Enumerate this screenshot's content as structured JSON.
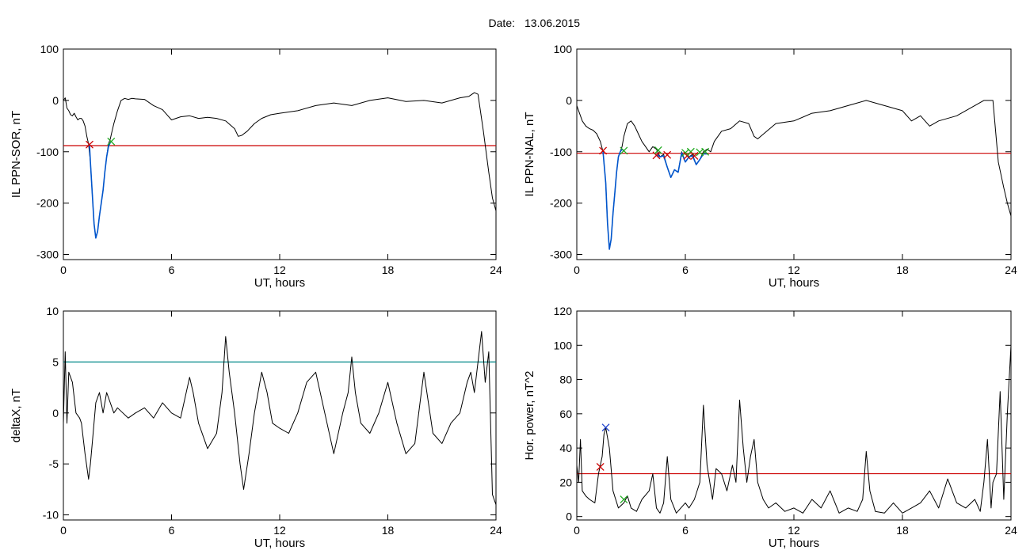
{
  "header": {
    "date_label": "Date:",
    "date_value": "13.06.2015"
  },
  "chart_data": [
    {
      "type": "line",
      "ylabel": "IL PPN-SOR, nT",
      "xlabel": "UT, hours",
      "xlim": [
        0,
        24
      ],
      "ylim": [
        -310,
        100
      ],
      "xticks": [
        0,
        6,
        12,
        18,
        24
      ],
      "yticks": [
        -300,
        -200,
        -100,
        0,
        100
      ],
      "grid": false,
      "threshold": {
        "value": -88,
        "color": "#cc0000"
      },
      "series": [
        {
          "color": "#000000",
          "x": [
            0,
            0.1,
            0.2,
            0.3,
            0.4,
            0.5,
            0.6,
            0.7,
            0.8,
            0.9,
            1.0,
            1.1,
            1.2,
            1.3,
            1.4,
            1.5,
            1.6,
            1.7,
            1.8,
            1.9,
            2.0,
            2.1,
            2.2,
            2.3,
            2.4,
            2.5,
            2.6,
            2.7,
            2.8,
            3.0,
            3.2,
            3.4,
            3.6,
            3.8,
            4.0,
            4.5,
            5.0,
            5.5,
            5.8,
            6.0,
            6.5,
            7.0,
            7.5,
            8.0,
            8.5,
            9.0,
            9.5,
            9.7,
            9.9,
            10.2,
            10.6,
            11.0,
            11.5,
            12.0,
            13.0,
            14.0,
            15.0,
            16.0,
            17.0,
            18.0,
            19.0,
            20.0,
            21.0,
            22.0,
            22.5,
            22.8,
            23.0,
            23.3,
            23.6,
            23.8,
            24.0
          ],
          "y": [
            0,
            5,
            -15,
            -20,
            -28,
            -30,
            -25,
            -32,
            -38,
            -35,
            -35,
            -40,
            -50,
            -70,
            -85,
            -120,
            -180,
            -240,
            -268,
            -255,
            -225,
            -200,
            -175,
            -140,
            -110,
            -85,
            -75,
            -60,
            -45,
            -20,
            0,
            4,
            2,
            4,
            3,
            2,
            -10,
            -18,
            -30,
            -38,
            -32,
            -30,
            -35,
            -33,
            -35,
            -40,
            -55,
            -70,
            -68,
            -60,
            -45,
            -35,
            -28,
            -25,
            -20,
            -10,
            -5,
            -10,
            0,
            5,
            -2,
            0,
            -5,
            5,
            8,
            15,
            12,
            -60,
            -140,
            -190,
            -215
          ]
        },
        {
          "color": "#0055cc",
          "x": [
            1.45,
            1.5,
            1.6,
            1.7,
            1.8,
            1.9,
            2.0,
            2.1,
            2.2,
            2.3,
            2.4,
            2.5,
            2.6,
            2.65
          ],
          "y": [
            -88,
            -120,
            -180,
            -240,
            -268,
            -255,
            -225,
            -200,
            -175,
            -140,
            -110,
            -90,
            -82,
            -80
          ]
        }
      ],
      "markers": [
        {
          "x": 1.45,
          "y": -86,
          "color": "#cc0000"
        },
        {
          "x": 2.65,
          "y": -80,
          "color": "#22aa22"
        }
      ]
    },
    {
      "type": "line",
      "ylabel": "IL PPN-NAL, nT",
      "xlabel": "UT, hours",
      "xlim": [
        0,
        24
      ],
      "ylim": [
        -310,
        100
      ],
      "xticks": [
        0,
        6,
        12,
        18,
        24
      ],
      "yticks": [
        -300,
        -200,
        -100,
        0,
        100
      ],
      "grid": false,
      "threshold": {
        "value": -103,
        "color": "#cc0000"
      },
      "series": [
        {
          "color": "#000000",
          "x": [
            0,
            0.1,
            0.2,
            0.3,
            0.5,
            0.7,
            0.9,
            1.1,
            1.3,
            1.45,
            1.6,
            1.7,
            1.8,
            1.9,
            2.0,
            2.1,
            2.2,
            2.3,
            2.4,
            2.5,
            2.6,
            2.8,
            3.0,
            3.2,
            3.4,
            3.6,
            3.8,
            4.0,
            4.2,
            4.4,
            4.6,
            4.8,
            5.0,
            5.2,
            5.4,
            5.6,
            5.8,
            6.0,
            6.2,
            6.4,
            6.6,
            6.8,
            7.0,
            7.2,
            7.4,
            7.6,
            8.0,
            8.5,
            9.0,
            9.5,
            9.8,
            10.0,
            10.5,
            11.0,
            12.0,
            13.0,
            14.0,
            15.0,
            16.0,
            17.0,
            18.0,
            18.5,
            19.0,
            19.5,
            20.0,
            21.0,
            22.0,
            22.5,
            23.0,
            23.3,
            23.6,
            23.8,
            24.0
          ],
          "y": [
            -10,
            -20,
            -30,
            -40,
            -50,
            -55,
            -58,
            -65,
            -80,
            -100,
            -160,
            -240,
            -290,
            -270,
            -220,
            -180,
            -140,
            -110,
            -100,
            -90,
            -70,
            -45,
            -40,
            -50,
            -65,
            -80,
            -90,
            -100,
            -90,
            -95,
            -110,
            -105,
            -130,
            -150,
            -135,
            -140,
            -100,
            -120,
            -110,
            -105,
            -125,
            -115,
            -100,
            -95,
            -100,
            -80,
            -60,
            -55,
            -40,
            -45,
            -70,
            -75,
            -60,
            -45,
            -40,
            -25,
            -20,
            -10,
            0,
            -10,
            -20,
            -40,
            -30,
            -50,
            -40,
            -30,
            -10,
            0,
            0,
            -120,
            -170,
            -200,
            -225
          ]
        },
        {
          "color": "#0055cc",
          "x": [
            1.45,
            1.6,
            1.7,
            1.8,
            1.9,
            2.0,
            2.1,
            2.2,
            2.3,
            2.4,
            2.5,
            2.6
          ],
          "y": [
            -100,
            -160,
            -240,
            -290,
            -270,
            -220,
            -180,
            -140,
            -110,
            -100,
            -95,
            -98
          ]
        },
        {
          "color": "#0055cc",
          "x": [
            4.4,
            4.6,
            4.8,
            5.0,
            5.2,
            5.4,
            5.6,
            5.8,
            6.0,
            6.2,
            6.4,
            6.6,
            6.8,
            7.0,
            7.2
          ],
          "y": [
            -105,
            -110,
            -108,
            -130,
            -150,
            -135,
            -140,
            -102,
            -120,
            -110,
            -108,
            -125,
            -115,
            -104,
            -104
          ]
        }
      ],
      "markers": [
        {
          "x": 1.45,
          "y": -98,
          "color": "#cc0000"
        },
        {
          "x": 2.6,
          "y": -98,
          "color": "#22aa22"
        },
        {
          "x": 4.4,
          "y": -107,
          "color": "#cc0000"
        },
        {
          "x": 4.5,
          "y": -97,
          "color": "#22aa22"
        },
        {
          "x": 5.0,
          "y": -106,
          "color": "#cc0000"
        },
        {
          "x": 6.0,
          "y": -102,
          "color": "#22aa22"
        },
        {
          "x": 6.1,
          "y": -108,
          "color": "#cc0000"
        },
        {
          "x": 6.3,
          "y": -100,
          "color": "#22aa22"
        },
        {
          "x": 6.5,
          "y": -108,
          "color": "#cc0000"
        },
        {
          "x": 6.8,
          "y": -101,
          "color": "#22aa22"
        },
        {
          "x": 7.1,
          "y": -100,
          "color": "#22aa22"
        }
      ]
    },
    {
      "type": "line",
      "ylabel": "deltaX, nT",
      "xlabel": "UT, hours",
      "xlim": [
        0,
        24
      ],
      "ylim": [
        -10.5,
        10
      ],
      "xticks": [
        0,
        6,
        12,
        18,
        24
      ],
      "yticks": [
        -10,
        -5,
        0,
        5,
        10
      ],
      "grid": false,
      "threshold": {
        "value": 5,
        "color": "#008888"
      },
      "series": [
        {
          "color": "#000000",
          "x": [
            0,
            0.1,
            0.2,
            0.3,
            0.5,
            0.7,
            0.9,
            1.0,
            1.2,
            1.4,
            1.5,
            1.6,
            1.8,
            2.0,
            2.2,
            2.4,
            2.6,
            2.8,
            3.0,
            3.3,
            3.6,
            4.0,
            4.5,
            5.0,
            5.5,
            6.0,
            6.5,
            7.0,
            7.2,
            7.5,
            8.0,
            8.5,
            8.8,
            9.0,
            9.2,
            9.5,
            9.8,
            10.0,
            10.3,
            10.6,
            11.0,
            11.3,
            11.6,
            12.0,
            12.5,
            13.0,
            13.5,
            14.0,
            14.5,
            15.0,
            15.5,
            15.8,
            16.0,
            16.2,
            16.5,
            17.0,
            17.5,
            18.0,
            18.5,
            19.0,
            19.5,
            20.0,
            20.5,
            21.0,
            21.5,
            22.0,
            22.4,
            22.6,
            22.8,
            23.0,
            23.2,
            23.4,
            23.6,
            23.8,
            24.0
          ],
          "y": [
            -1,
            6,
            -1,
            4,
            3,
            0,
            -0.5,
            -1,
            -4,
            -6.5,
            -5,
            -3,
            1,
            2,
            0,
            2,
            1,
            0,
            0.5,
            0,
            -0.5,
            0,
            0.5,
            -0.5,
            1,
            0,
            -0.5,
            3.5,
            2,
            -1,
            -3.5,
            -2,
            2,
            7.5,
            4,
            0,
            -5,
            -7.5,
            -4,
            0,
            4,
            2,
            -1,
            -1.5,
            -2,
            0,
            3,
            4,
            0,
            -4,
            0,
            2,
            5.5,
            2,
            -1,
            -2,
            0,
            3,
            -1,
            -4,
            -3,
            4,
            -2,
            -3,
            -1,
            0,
            3,
            4,
            2,
            5,
            8,
            3,
            6,
            -8,
            -9
          ]
        }
      ],
      "markers": []
    },
    {
      "type": "line",
      "ylabel": "Hor. power, nT^2",
      "xlabel": "UT, hours",
      "xlim": [
        0,
        24
      ],
      "ylim": [
        -2,
        120
      ],
      "xticks": [
        0,
        6,
        12,
        18,
        24
      ],
      "yticks": [
        0,
        20,
        40,
        60,
        80,
        100,
        120
      ],
      "grid": false,
      "threshold": {
        "value": 25,
        "color": "#cc0000"
      },
      "series": [
        {
          "color": "#000000",
          "x": [
            0,
            0.1,
            0.2,
            0.3,
            0.5,
            0.7,
            1.0,
            1.2,
            1.4,
            1.5,
            1.6,
            1.8,
            2.0,
            2.3,
            2.6,
            2.8,
            3.0,
            3.3,
            3.6,
            4.0,
            4.2,
            4.4,
            4.6,
            4.8,
            5.0,
            5.2,
            5.5,
            6.0,
            6.2,
            6.5,
            6.8,
            7.0,
            7.2,
            7.5,
            7.7,
            8.0,
            8.3,
            8.6,
            8.8,
            9.0,
            9.2,
            9.4,
            9.6,
            9.8,
            10.0,
            10.3,
            10.6,
            11.0,
            11.5,
            12.0,
            12.5,
            13.0,
            13.5,
            14.0,
            14.5,
            15.0,
            15.5,
            15.8,
            16.0,
            16.2,
            16.5,
            17.0,
            17.5,
            18.0,
            18.5,
            19.0,
            19.5,
            20.0,
            20.5,
            21.0,
            21.5,
            22.0,
            22.3,
            22.5,
            22.7,
            22.9,
            23.0,
            23.2,
            23.4,
            23.6,
            23.8,
            24.0
          ],
          "y": [
            30,
            20,
            45,
            15,
            12,
            10,
            8,
            25,
            35,
            48,
            52,
            40,
            15,
            5,
            8,
            12,
            5,
            3,
            10,
            15,
            25,
            5,
            2,
            8,
            35,
            10,
            2,
            8,
            5,
            10,
            20,
            65,
            30,
            10,
            28,
            25,
            15,
            30,
            20,
            68,
            40,
            20,
            35,
            45,
            20,
            10,
            5,
            8,
            3,
            5,
            2,
            10,
            5,
            15,
            2,
            5,
            3,
            10,
            38,
            15,
            3,
            2,
            8,
            2,
            5,
            8,
            15,
            5,
            22,
            8,
            5,
            10,
            3,
            20,
            45,
            5,
            20,
            25,
            73,
            10,
            60,
            100
          ]
        }
      ],
      "markers": [
        {
          "x": 1.3,
          "y": 29,
          "color": "#cc0000"
        },
        {
          "x": 1.6,
          "y": 52,
          "color": "#2244cc"
        },
        {
          "x": 2.6,
          "y": 10,
          "color": "#22aa22"
        }
      ]
    }
  ]
}
